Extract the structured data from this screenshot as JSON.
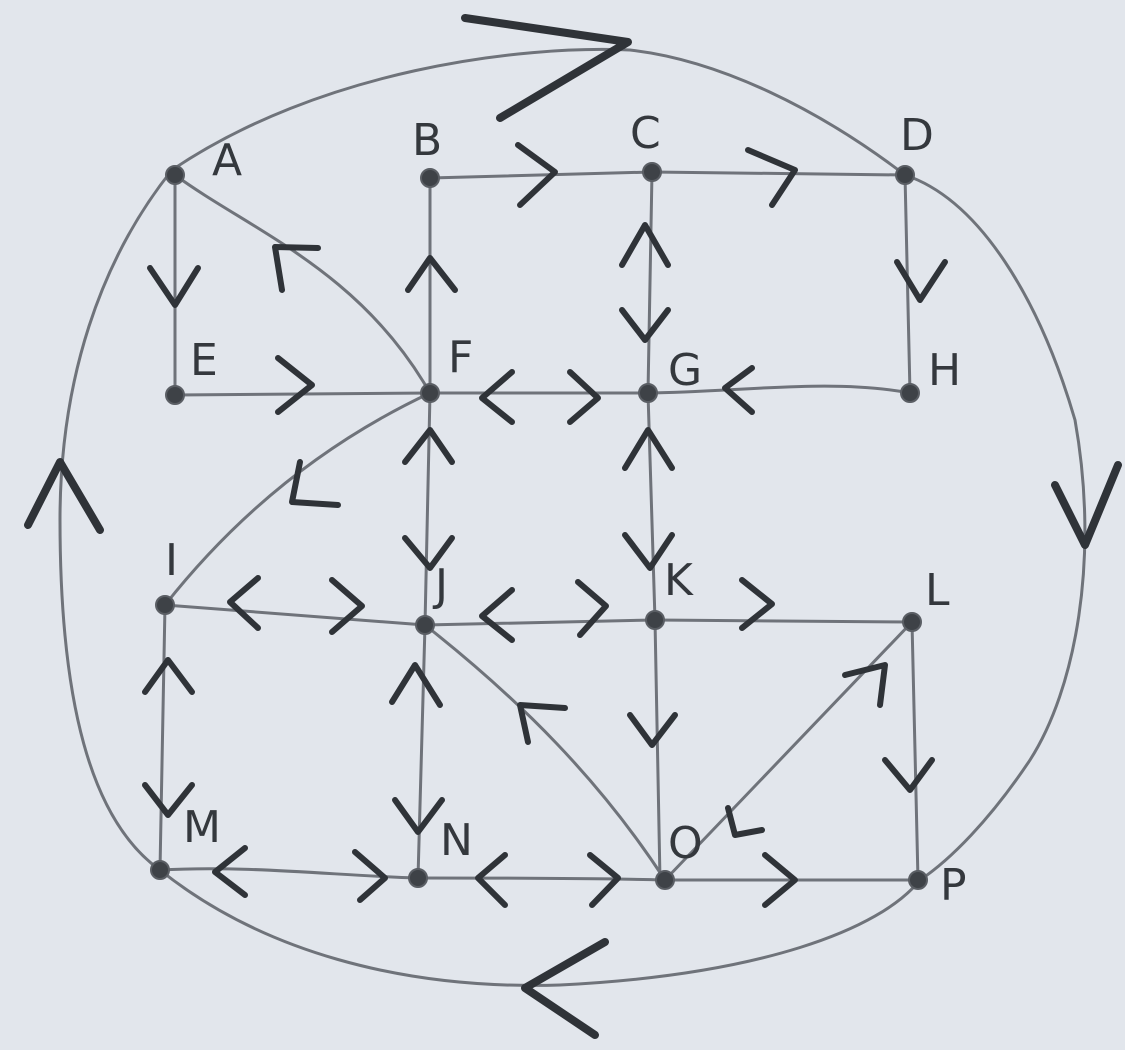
{
  "nodes": [
    {
      "id": "A",
      "label": "A"
    },
    {
      "id": "B",
      "label": "B"
    },
    {
      "id": "C",
      "label": "C"
    },
    {
      "id": "D",
      "label": "D"
    },
    {
      "id": "E",
      "label": "E"
    },
    {
      "id": "F",
      "label": "F"
    },
    {
      "id": "G",
      "label": "G"
    },
    {
      "id": "H",
      "label": "H"
    },
    {
      "id": "I",
      "label": "I"
    },
    {
      "id": "J",
      "label": "J"
    },
    {
      "id": "K",
      "label": "K"
    },
    {
      "id": "L",
      "label": "L"
    },
    {
      "id": "M",
      "label": "M"
    },
    {
      "id": "N",
      "label": "N"
    },
    {
      "id": "O",
      "label": "O"
    },
    {
      "id": "P",
      "label": "P"
    }
  ],
  "edges": [
    {
      "from": "A",
      "to": "D",
      "directed": true
    },
    {
      "from": "D",
      "to": "P",
      "directed": true
    },
    {
      "from": "P",
      "to": "M",
      "directed": true
    },
    {
      "from": "M",
      "to": "A",
      "directed": true
    },
    {
      "from": "B",
      "to": "C",
      "directed": true
    },
    {
      "from": "C",
      "to": "D",
      "directed": true
    },
    {
      "from": "A",
      "to": "E",
      "directed": true
    },
    {
      "from": "F",
      "to": "A",
      "directed": true
    },
    {
      "from": "F",
      "to": "B",
      "directed": true
    },
    {
      "from": "G",
      "to": "C",
      "directed": true
    },
    {
      "from": "C",
      "to": "G",
      "directed": true
    },
    {
      "from": "D",
      "to": "H",
      "directed": true
    },
    {
      "from": "E",
      "to": "F",
      "directed": true
    },
    {
      "from": "F",
      "to": "G",
      "directed": false
    },
    {
      "from": "H",
      "to": "G",
      "directed": true
    },
    {
      "from": "F",
      "to": "I",
      "directed": true
    },
    {
      "from": "F",
      "to": "J",
      "directed": false
    },
    {
      "from": "K",
      "to": "G",
      "directed": true
    },
    {
      "from": "G",
      "to": "K",
      "directed": true
    },
    {
      "from": "I",
      "to": "J",
      "directed": false
    },
    {
      "from": "J",
      "to": "K",
      "directed": false
    },
    {
      "from": "K",
      "to": "L",
      "directed": true
    },
    {
      "from": "I",
      "to": "M",
      "directed": false
    },
    {
      "from": "N",
      "to": "J",
      "directed": true
    },
    {
      "from": "J",
      "to": "N",
      "directed": true
    },
    {
      "from": "O",
      "to": "J",
      "directed": true
    },
    {
      "from": "K",
      "to": "O",
      "directed": true
    },
    {
      "from": "O",
      "to": "L",
      "directed": false
    },
    {
      "from": "L",
      "to": "P",
      "directed": true
    },
    {
      "from": "M",
      "to": "N",
      "directed": false
    },
    {
      "from": "N",
      "to": "O",
      "directed": false
    },
    {
      "from": "O",
      "to": "P",
      "directed": true
    }
  ]
}
